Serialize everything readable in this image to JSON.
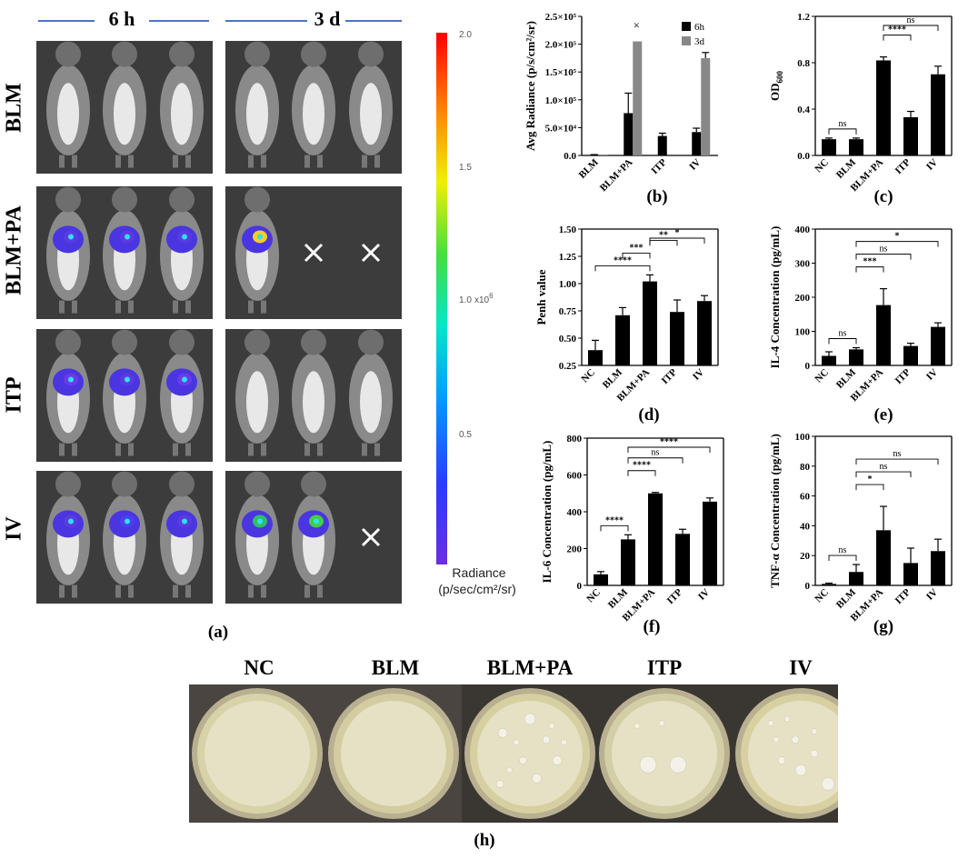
{
  "panel_a": {
    "time_headers": [
      "6 h",
      "3 d"
    ],
    "rows": [
      "BLM",
      "BLM+PA",
      "ITP",
      "IV"
    ],
    "colorbar": {
      "ticks": [
        "2.0",
        "1.5",
        "1.0",
        "0.5"
      ],
      "multiplier": "x10^6",
      "label_line1": "Radiance",
      "label_line2": "(p/sec/cm²/sr)"
    },
    "missing_marker": "×",
    "label": "(a)"
  },
  "panel_h": {
    "dishes": [
      "NC",
      "BLM",
      "BLM+PA",
      "ITP",
      "IV"
    ],
    "label": "(h)"
  },
  "chart_data": [
    {
      "id": "b",
      "type": "bar",
      "label": "(b)",
      "categories": [
        "BLM",
        "BLM+PA",
        "ITP",
        "IV"
      ],
      "series": [
        {
          "name": "6h",
          "color": "#000000",
          "values": [
            1000,
            76000,
            35000,
            42000
          ],
          "errors": [
            500,
            36000,
            5000,
            7000
          ]
        },
        {
          "name": "3d",
          "color": "#888888",
          "values": [
            500,
            205000,
            null,
            175000
          ],
          "errors": [
            0,
            0,
            0,
            10000
          ]
        }
      ],
      "ylabel": "Avg Radiance (p/s/cm²/sr)",
      "ylim": [
        0,
        250000
      ],
      "yticks": [
        "0.0",
        "5.0×10⁴",
        "1.0×10⁵",
        "1.5×10⁵",
        "2.0×10⁵",
        "2.5×10⁵"
      ],
      "annotations": [
        {
          "text": "×",
          "category": "BLM+PA"
        }
      ],
      "legend": "top-right"
    },
    {
      "id": "c",
      "type": "bar",
      "label": "(c)",
      "categories": [
        "NC",
        "BLM",
        "BLM+PA",
        "ITP",
        "IV"
      ],
      "values": [
        0.14,
        0.14,
        0.82,
        0.33,
        0.7
      ],
      "errors": [
        0.01,
        0.01,
        0.03,
        0.05,
        0.07
      ],
      "ylabel": "OD600",
      "ylim": [
        0,
        1.2
      ],
      "yticks": [
        "0.0",
        "0.4",
        "0.8",
        "1.2"
      ],
      "brackets": [
        {
          "from": 0,
          "to": 1,
          "text": "ns"
        },
        {
          "from": 2,
          "to": 3,
          "text": "****"
        },
        {
          "from": 2,
          "to": 4,
          "text": "ns"
        }
      ]
    },
    {
      "id": "d",
      "type": "bar",
      "label": "(d)",
      "categories": [
        "NC",
        "BLM",
        "BLM+PA",
        "ITP",
        "IV"
      ],
      "values": [
        0.39,
        0.71,
        1.02,
        0.74,
        0.84
      ],
      "errors": [
        0.09,
        0.07,
        0.06,
        0.11,
        0.05
      ],
      "ylabel": "Penh value",
      "ylim": [
        0.25,
        1.5
      ],
      "yticks": [
        "0.25",
        "0.50",
        "0.75",
        "1.00",
        "1.25",
        "1.50"
      ],
      "brackets": [
        {
          "from": 0,
          "to": 2,
          "text": "****"
        },
        {
          "from": 1,
          "to": 2,
          "text": "***"
        },
        {
          "from": 2,
          "to": 3,
          "text": "**"
        },
        {
          "from": 2,
          "to": 4,
          "text": "*"
        }
      ]
    },
    {
      "id": "e",
      "type": "bar",
      "label": "(e)",
      "categories": [
        "NC",
        "BLM",
        "BLM+PA",
        "ITP",
        "IV"
      ],
      "values": [
        28,
        47,
        177,
        57,
        113
      ],
      "errors": [
        12,
        5,
        48,
        8,
        12
      ],
      "ylabel": "IL-4 Concentration (pg/mL)",
      "ylim": [
        0,
        400
      ],
      "yticks": [
        "0",
        "100",
        "200",
        "300",
        "400"
      ],
      "brackets": [
        {
          "from": 0,
          "to": 1,
          "text": "ns"
        },
        {
          "from": 1,
          "to": 2,
          "text": "***"
        },
        {
          "from": 1,
          "to": 3,
          "text": "ns"
        },
        {
          "from": 1,
          "to": 4,
          "text": "*"
        }
      ]
    },
    {
      "id": "f",
      "type": "bar",
      "label": "(f)",
      "categories": [
        "NC",
        "BLM",
        "BLM+PA",
        "ITP",
        "IV"
      ],
      "values": [
        60,
        250,
        500,
        280,
        455
      ],
      "errors": [
        15,
        25,
        5,
        25,
        20
      ],
      "ylabel": "IL-6 Concentration (pg/mL)",
      "ylim": [
        0,
        800
      ],
      "yticks": [
        "0",
        "200",
        "400",
        "600",
        "800"
      ],
      "brackets": [
        {
          "from": 0,
          "to": 1,
          "text": "****"
        },
        {
          "from": 1,
          "to": 2,
          "text": "****"
        },
        {
          "from": 1,
          "to": 3,
          "text": "ns"
        },
        {
          "from": 1,
          "to": 4,
          "text": "****"
        }
      ]
    },
    {
      "id": "g",
      "type": "bar",
      "label": "(g)",
      "categories": [
        "NC",
        "BLM",
        "BLM+PA",
        "ITP",
        "IV"
      ],
      "values": [
        1,
        9,
        37,
        15,
        23
      ],
      "errors": [
        0.5,
        5,
        16,
        10,
        8
      ],
      "ylabel": "TNF-α Concentration (pg/mL)",
      "ylim": [
        0,
        100
      ],
      "yticks": [
        "0",
        "20",
        "40",
        "60",
        "80",
        "100"
      ],
      "brackets": [
        {
          "from": 0,
          "to": 1,
          "text": "ns"
        },
        {
          "from": 1,
          "to": 2,
          "text": "*"
        },
        {
          "from": 1,
          "to": 3,
          "text": "ns"
        },
        {
          "from": 1,
          "to": 4,
          "text": "ns"
        }
      ]
    }
  ]
}
